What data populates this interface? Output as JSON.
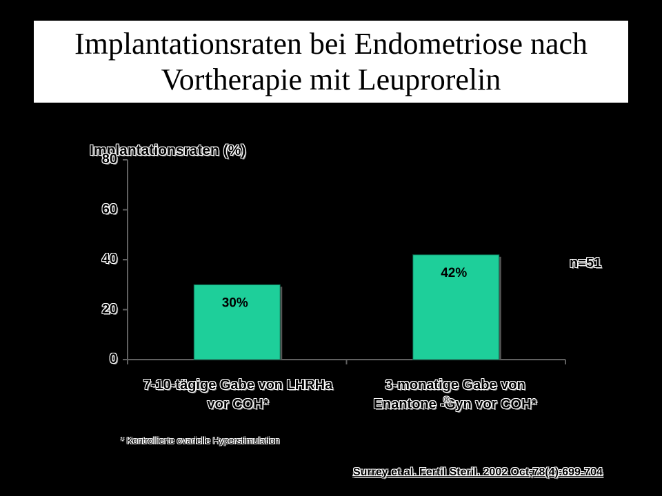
{
  "title": "Implantationsraten bei Endometriose nach Vortherapie mit Leuprorelin",
  "chart_data": {
    "type": "bar",
    "ylabel": "Implantationsraten (%)",
    "ylim": [
      0,
      80
    ],
    "yticks": [
      "0",
      "20",
      "40",
      "60",
      "80"
    ],
    "categories": [
      "7-10-tägige Gabe von LHRHa vor COH*",
      "3-monatige Gabe von Enantone -Gyn vor COH*"
    ],
    "values": [
      30,
      42
    ],
    "data_labels": [
      "30%",
      "42%"
    ],
    "bar_color": "#1ecf9a",
    "annotation": "n=51",
    "grid": false
  },
  "category_lines": [
    [
      "7-10-tägige Gabe von LHRHa",
      "vor COH*"
    ],
    [
      "3-monatige Gabe von",
      "Enantone -Gyn vor COH*"
    ]
  ],
  "registered_mark": "®",
  "footnote": "* Kontrollierte ovarielle Hyperstimulation",
  "citation": "Surrey et al. Fertil Steril. 2002 Oct;78(4):699-704"
}
